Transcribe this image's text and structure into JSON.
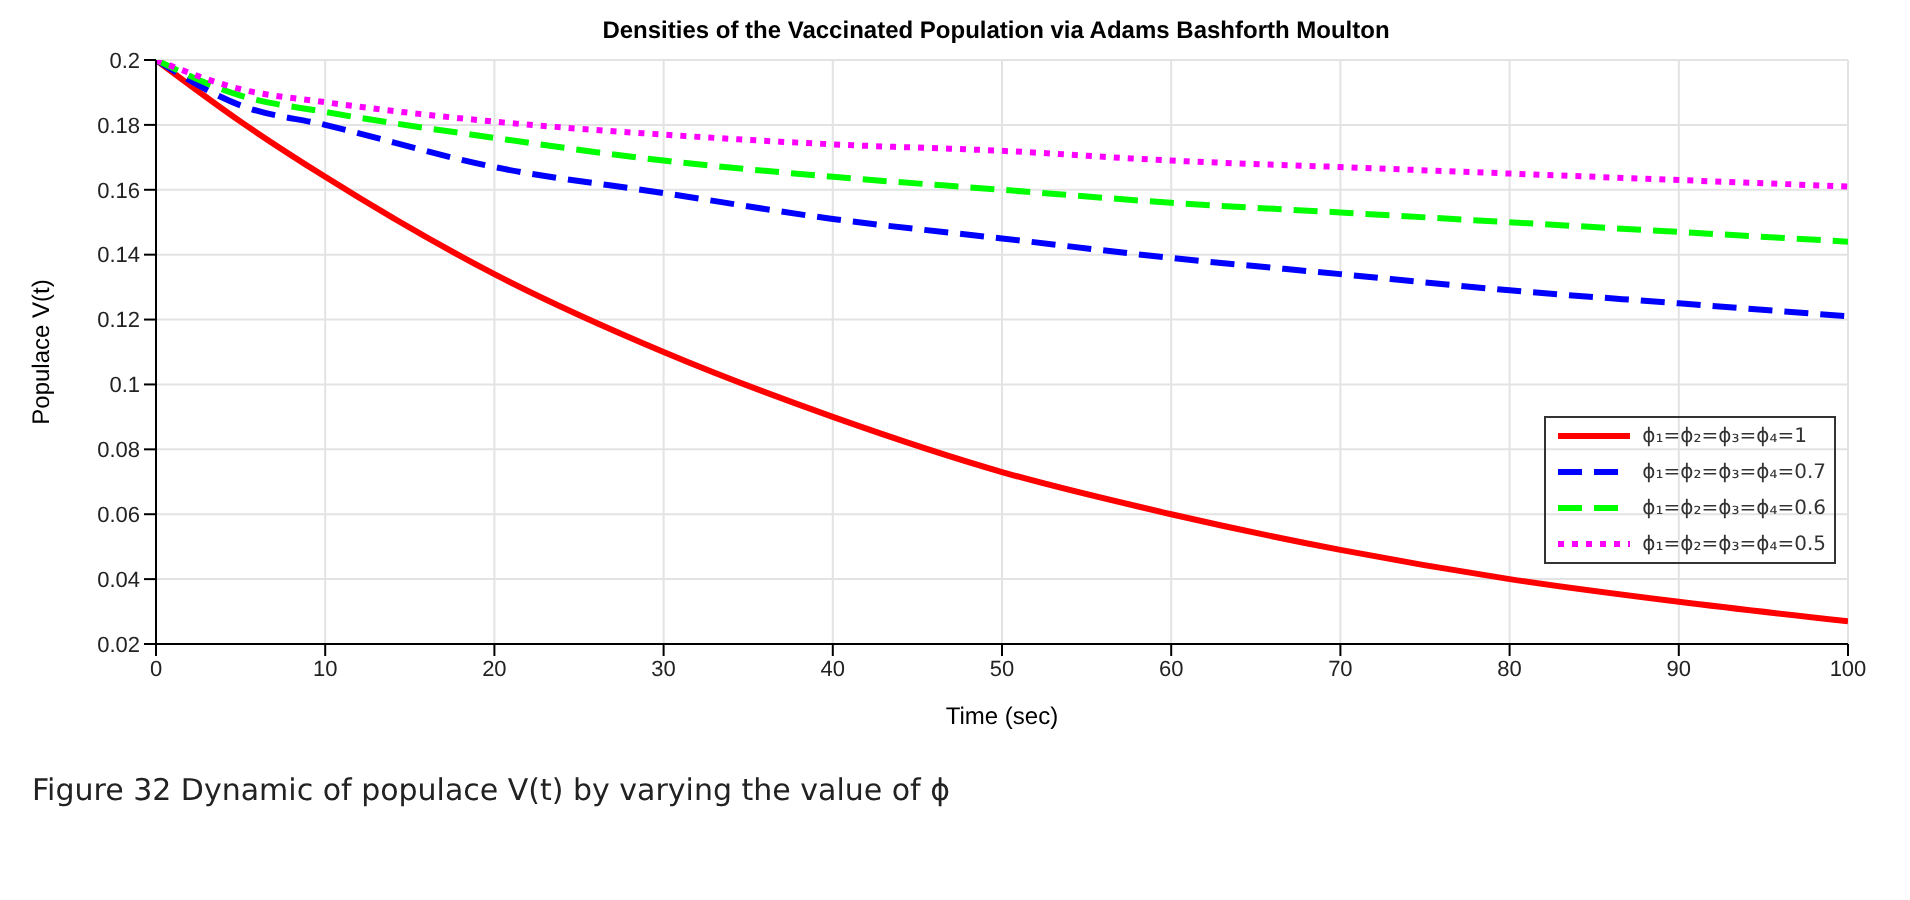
{
  "chart_data": {
    "type": "line",
    "title": "Densities of the Vaccinated Population via Adams Bashforth Moulton",
    "xlabel": "Time (sec)",
    "ylabel": "Populace V(t)",
    "x": [
      0,
      5,
      10,
      20,
      30,
      40,
      50,
      60,
      70,
      80,
      90,
      100
    ],
    "series": [
      {
        "name": "ϕ₁=ϕ₂=ϕ₃=ϕ₄=1",
        "color": "#ff0000",
        "line_style": "solid",
        "values": [
          0.2,
          0.181,
          0.164,
          0.134,
          0.11,
          0.09,
          0.073,
          0.06,
          0.049,
          0.04,
          0.033,
          0.027
        ]
      },
      {
        "name": "ϕ₁=ϕ₂=ϕ₃=ϕ₄=0.7",
        "color": "#0000ff",
        "line_style": "dashed",
        "values": [
          0.2,
          0.186,
          0.18,
          0.167,
          0.159,
          0.151,
          0.145,
          0.139,
          0.134,
          0.129,
          0.125,
          0.121
        ]
      },
      {
        "name": "ϕ₁=ϕ₂=ϕ₃=ϕ₄=0.6",
        "color": "#00ff00",
        "line_style": "dashed",
        "values": [
          0.2,
          0.189,
          0.184,
          0.176,
          0.169,
          0.164,
          0.16,
          0.156,
          0.153,
          0.15,
          0.147,
          0.144
        ]
      },
      {
        "name": "ϕ₁=ϕ₂=ϕ₃=ϕ₄=0.5",
        "color": "#ff00ff",
        "line_style": "dotted",
        "values": [
          0.2,
          0.191,
          0.187,
          0.181,
          0.177,
          0.174,
          0.172,
          0.169,
          0.167,
          0.165,
          0.163,
          0.161
        ]
      }
    ],
    "xlim": [
      0,
      100
    ],
    "xticks": [
      0,
      10,
      20,
      30,
      40,
      50,
      60,
      70,
      80,
      90,
      100
    ],
    "ylim": [
      0.02,
      0.2
    ],
    "yticks": [
      0.02,
      0.04,
      0.06,
      0.08,
      0.1,
      0.12,
      0.14,
      0.16,
      0.18,
      0.2
    ],
    "grid": true,
    "legend": "right",
    "marker": "none",
    "annotations": [
      "Figure 32  Dynamic of populace V(t) by varying the value of ϕ"
    ]
  }
}
